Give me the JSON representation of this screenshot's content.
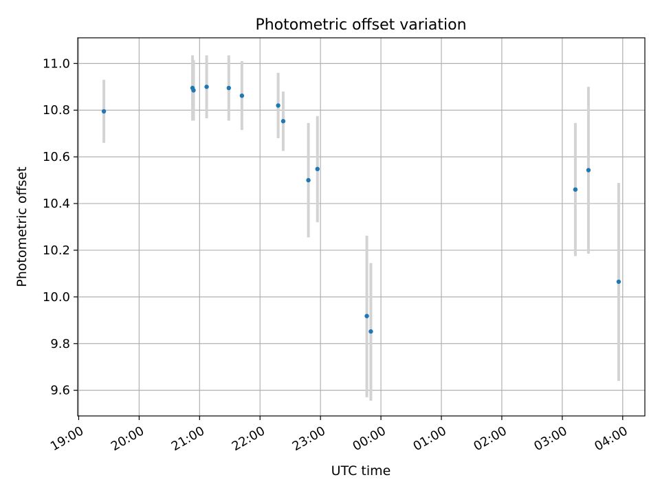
{
  "chart_data": {
    "type": "scatter",
    "title": "Photometric offset variation",
    "xlabel": "UTC time",
    "ylabel": "Photometric offset",
    "x_axis": "time (UTC)",
    "xlim": [
      "18:59",
      "04:22"
    ],
    "ylim": [
      9.49,
      11.11
    ],
    "grid": true,
    "x_ticks": [
      "19:00",
      "20:00",
      "21:00",
      "22:00",
      "23:00",
      "00:00",
      "01:00",
      "02:00",
      "03:00",
      "04:00"
    ],
    "y_ticks": [
      "9.6",
      "9.8",
      "10.0",
      "10.2",
      "10.4",
      "10.6",
      "10.8",
      "11.0"
    ],
    "points": [
      {
        "x": "19:25",
        "y": 10.795,
        "yerr_low": 10.66,
        "yerr_high": 10.93
      },
      {
        "x": "20:53",
        "y": 10.895,
        "yerr_low": 10.755,
        "yerr_high": 11.035
      },
      {
        "x": "20:54",
        "y": 10.885,
        "yerr_low": 10.755,
        "yerr_high": 11.015
      },
      {
        "x": "21:07",
        "y": 10.9,
        "yerr_low": 10.765,
        "yerr_high": 11.035
      },
      {
        "x": "21:29",
        "y": 10.895,
        "yerr_low": 10.755,
        "yerr_high": 11.035
      },
      {
        "x": "21:42",
        "y": 10.862,
        "yerr_low": 10.715,
        "yerr_high": 11.01
      },
      {
        "x": "22:18",
        "y": 10.82,
        "yerr_low": 10.68,
        "yerr_high": 10.96
      },
      {
        "x": "22:23",
        "y": 10.753,
        "yerr_low": 10.625,
        "yerr_high": 10.88
      },
      {
        "x": "22:48",
        "y": 10.5,
        "yerr_low": 10.255,
        "yerr_high": 10.745
      },
      {
        "x": "22:57",
        "y": 10.548,
        "yerr_low": 10.32,
        "yerr_high": 10.775
      },
      {
        "x": "23:46",
        "y": 9.918,
        "yerr_low": 9.57,
        "yerr_high": 10.262
      },
      {
        "x": "23:50",
        "y": 9.852,
        "yerr_low": 9.555,
        "yerr_high": 10.145
      },
      {
        "x": "03:13",
        "y": 10.46,
        "yerr_low": 10.175,
        "yerr_high": 10.745
      },
      {
        "x": "03:26",
        "y": 10.543,
        "yerr_low": 10.185,
        "yerr_high": 10.9
      },
      {
        "x": "03:56",
        "y": 10.065,
        "yerr_low": 9.64,
        "yerr_high": 10.488
      }
    ],
    "colors": {
      "point": "#1f77b4",
      "errorbar": "#d3d3d3",
      "grid": "#b0b0b0",
      "axes": "#000000"
    }
  }
}
